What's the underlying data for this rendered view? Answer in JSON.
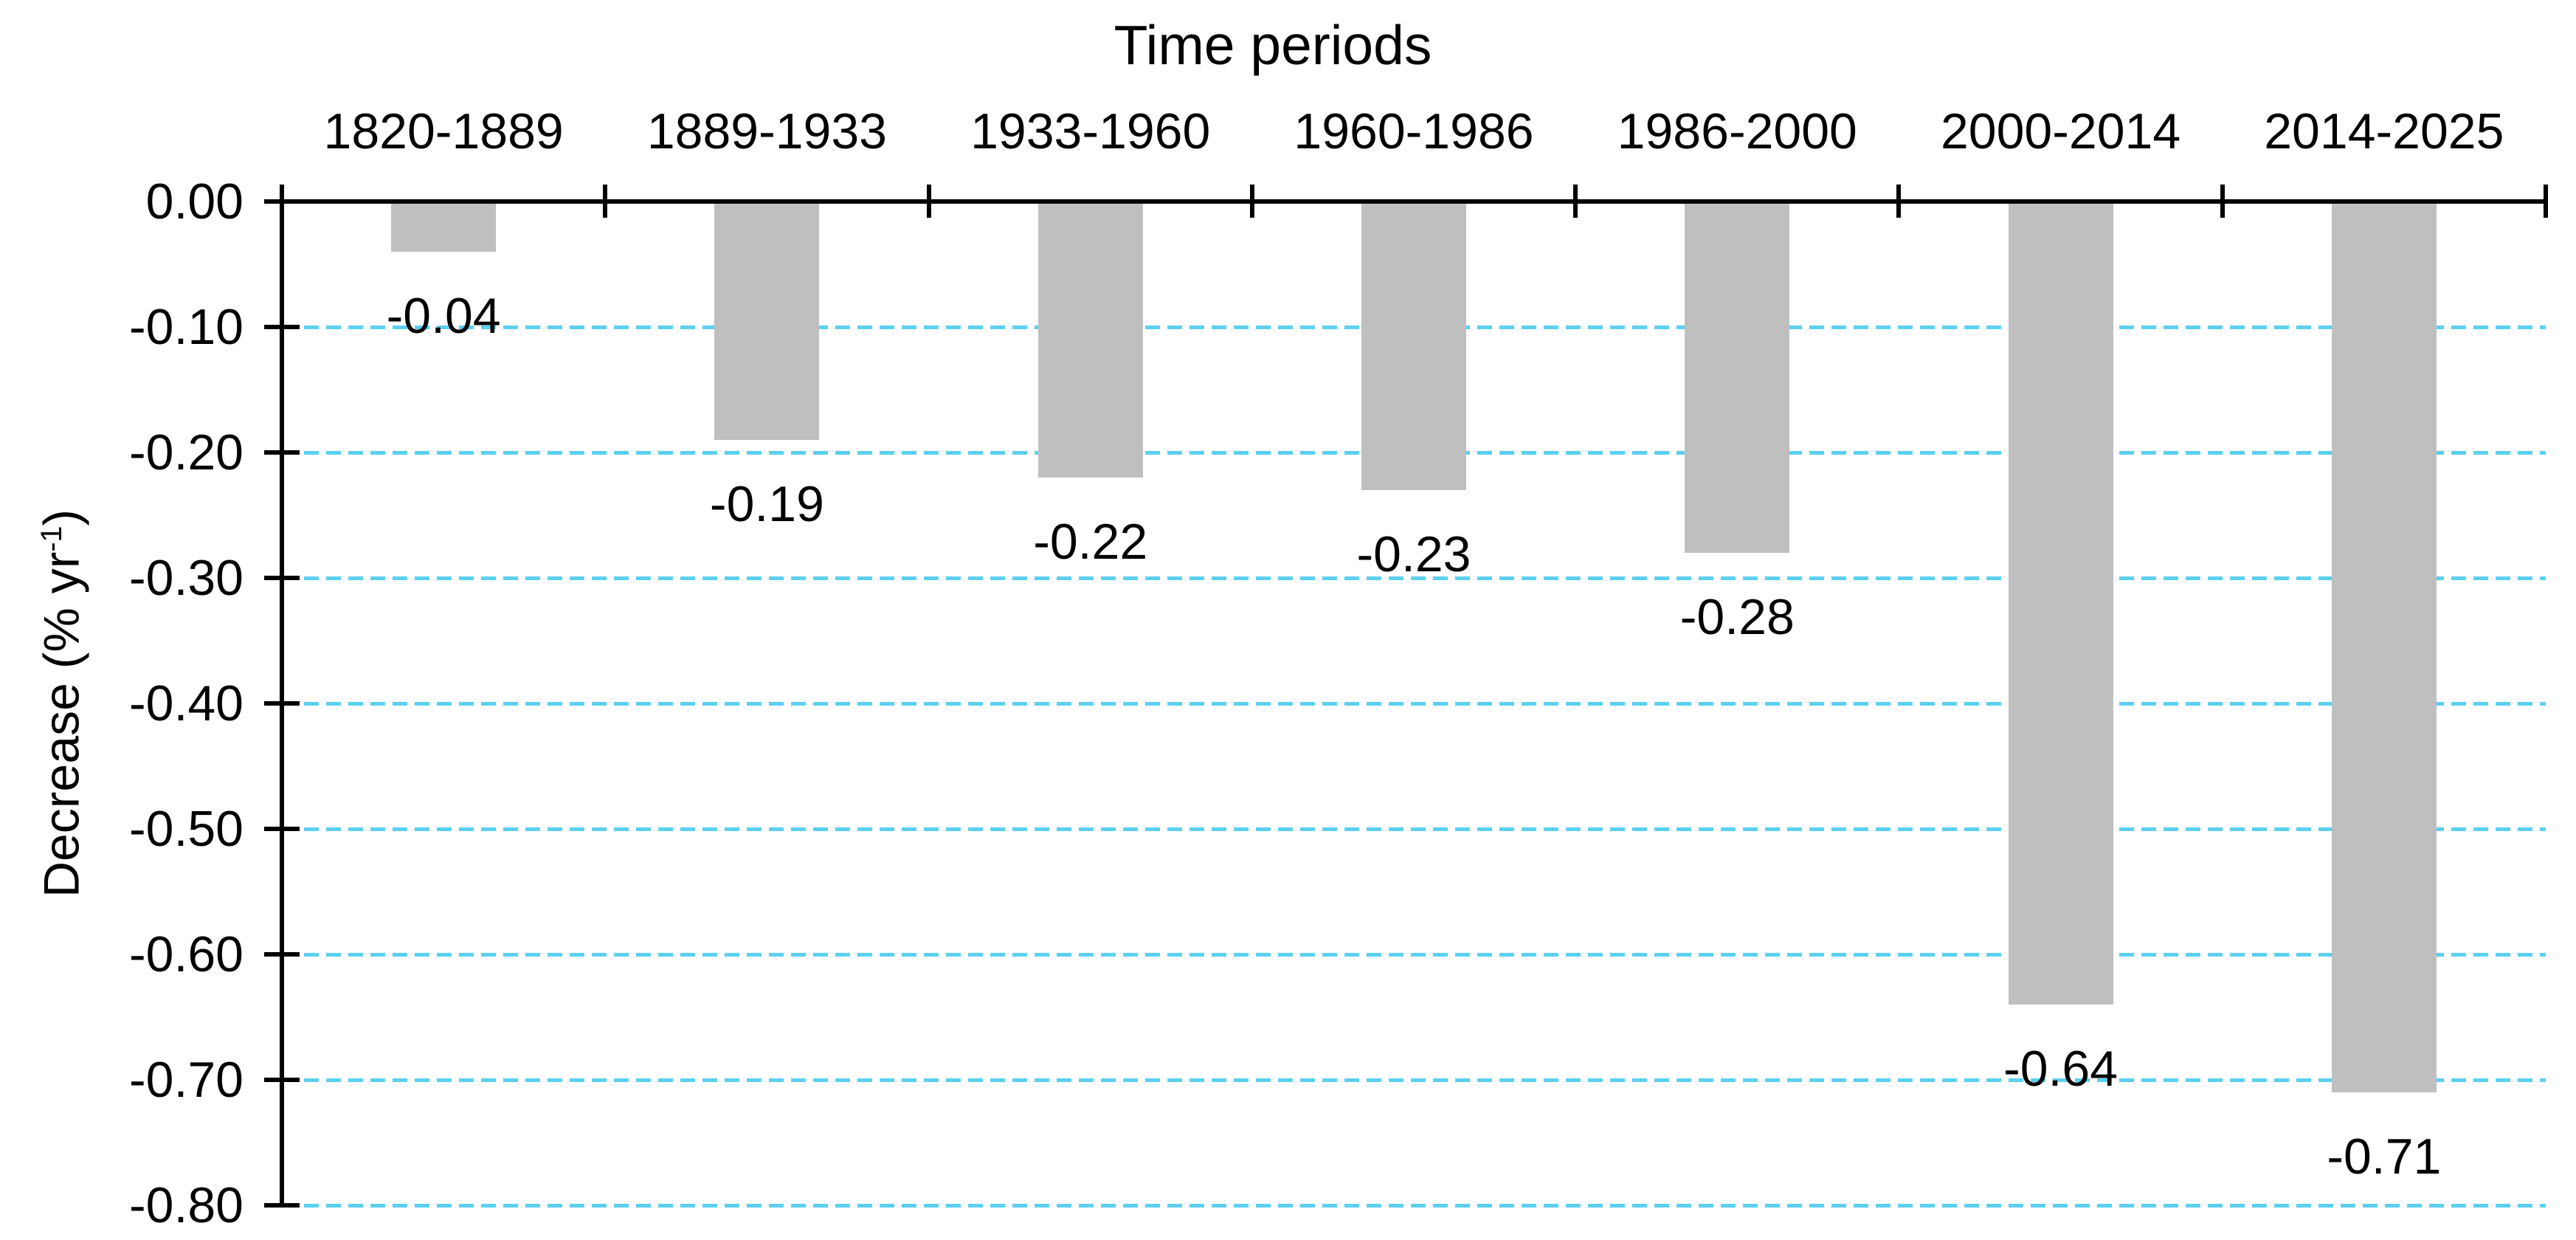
{
  "chart": {
    "title": "Time periods",
    "y_axis": {
      "title_prefix": "Decrease (% yr",
      "title_sup": "-1",
      "title_suffix": ")",
      "tick_labels": [
        "0.00",
        "-0.10",
        "-0.20",
        "-0.30",
        "-0.40",
        "-0.50",
        "-0.60",
        "-0.70",
        "-0.80"
      ]
    }
  },
  "chart_data": {
    "type": "bar",
    "title": "Time periods",
    "categories": [
      "1820-1889",
      "1889-1933",
      "1933-1960",
      "1960-1986",
      "1986-2000",
      "2000-2014",
      "2014-2025"
    ],
    "values": [
      -0.04,
      -0.19,
      -0.22,
      -0.23,
      -0.28,
      -0.64,
      -0.71
    ],
    "value_labels": [
      "-0.04",
      "-0.19",
      "-0.22",
      "-0.23",
      "-0.28",
      "-0.64",
      "-0.71"
    ],
    "xlabel": "Time periods",
    "ylabel": "Decrease (% yr-1)",
    "ylim": [
      -0.8,
      0
    ],
    "ytick_step": 0.1,
    "grid": "horizontal-dashed",
    "legend": "none",
    "bar_color": "#BFBFBF",
    "gridline_color": "#5BD0F0",
    "axis_color": "#000000",
    "text_color": "#000000"
  }
}
